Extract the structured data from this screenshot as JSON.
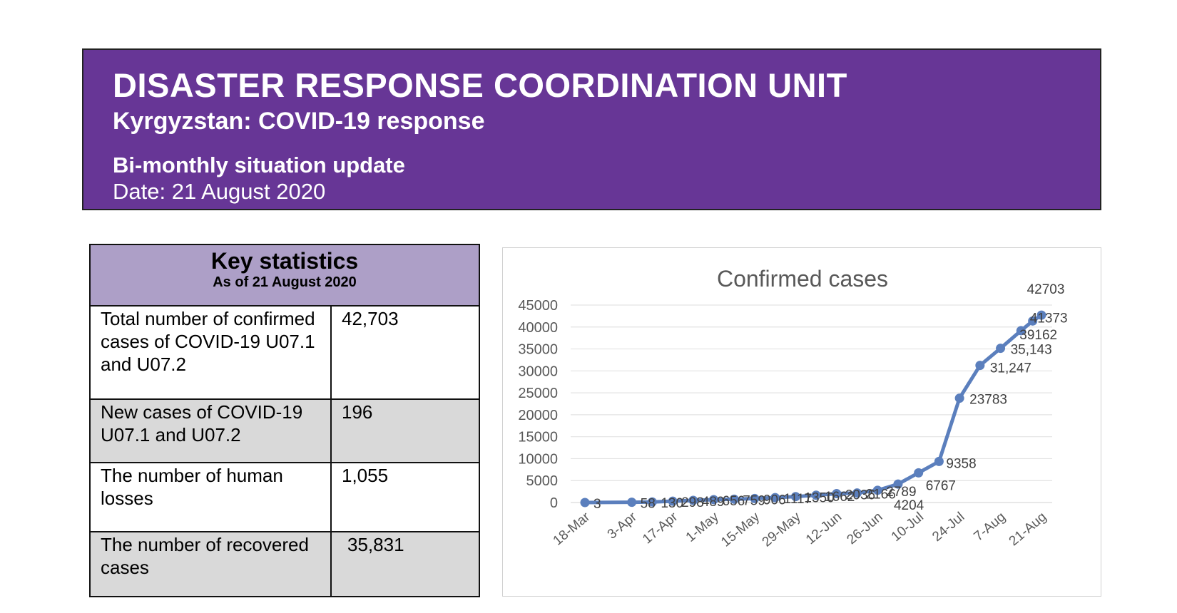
{
  "banner": {
    "title": "DISASTER RESPONSE COORDINATION UNIT",
    "subtitle": "Kyrgyzstan: COVID-19 response",
    "report_type": "Bi-monthly situation update",
    "date": "Date: 21 August 2020",
    "bg_color": "#673696"
  },
  "stats": {
    "title": "Key statistics",
    "as_of": "As of 21 August 2020",
    "header_color": "#ad9fc7",
    "rows": [
      {
        "label": "Total number of confirmed cases of COVID-19 U07.1 and U07.2",
        "value": "42,703"
      },
      {
        "label": "New cases of COVID-19 U07.1 and U07.2",
        "value": "196"
      },
      {
        "label": "The number of human losses",
        "value": "1,055"
      },
      {
        "label": "The number of recovered cases",
        "value": "35,831"
      }
    ]
  },
  "chart_data": {
    "type": "line",
    "title": "Confirmed cases",
    "ylim": [
      0,
      45000
    ],
    "y_ticks": [
      "0",
      "5000",
      "10000",
      "15000",
      "20000",
      "25000",
      "30000",
      "35000",
      "40000",
      "45000"
    ],
    "x_tick_labels": [
      "18-Mar",
      "3-Apr",
      "17-Apr",
      "1-May",
      "15-May",
      "29-May",
      "12-Jun",
      "26-Jun",
      "10-Jul",
      "24-Jul",
      "7-Aug",
      "21-Aug"
    ],
    "line_color": "#5b7fbd",
    "grid": true,
    "points": [
      {
        "x": "18-Mar",
        "y": 3,
        "label": "3"
      },
      {
        "x": "3-Apr",
        "y": 58,
        "label": "58"
      },
      {
        "x": "10-Apr",
        "y": 130,
        "label": "130"
      },
      {
        "x": "17-Apr",
        "y": 298,
        "label": "298"
      },
      {
        "x": "24-Apr",
        "y": 489,
        "label": "489"
      },
      {
        "x": "1-May",
        "y": 656,
        "label": "656"
      },
      {
        "x": "8-May",
        "y": 759,
        "label": "759"
      },
      {
        "x": "15-May",
        "y": 906,
        "label": "906"
      },
      {
        "x": "22-May",
        "y": 1117,
        "label": "1117"
      },
      {
        "x": "29-May",
        "y": 1350,
        "label": "1350"
      },
      {
        "x": "5-Jun",
        "y": 1662,
        "label": "1662"
      },
      {
        "x": "12-Jun",
        "y": 2036,
        "label": "2036"
      },
      {
        "x": "19-Jun",
        "y": 2166,
        "label": "2166"
      },
      {
        "x": "26-Jun",
        "y": 2789,
        "label": "2789"
      },
      {
        "x": "3-Jul",
        "y": 4204,
        "label": "4204"
      },
      {
        "x": "10-Jul",
        "y": 6767,
        "label": "6767"
      },
      {
        "x": "17-Jul",
        "y": 9358,
        "label": "9358"
      },
      {
        "x": "24-Jul",
        "y": 23783,
        "label": "23783"
      },
      {
        "x": "31-Jul",
        "y": 31247,
        "label": "31,247"
      },
      {
        "x": "7-Aug",
        "y": 35143,
        "label": "35,143"
      },
      {
        "x": "14-Aug",
        "y": 39162,
        "label": "39162"
      },
      {
        "x": "18-Aug",
        "y": 41373,
        "label": "41373"
      },
      {
        "x": "21-Aug",
        "y": 42703,
        "label": "42703"
      }
    ]
  }
}
